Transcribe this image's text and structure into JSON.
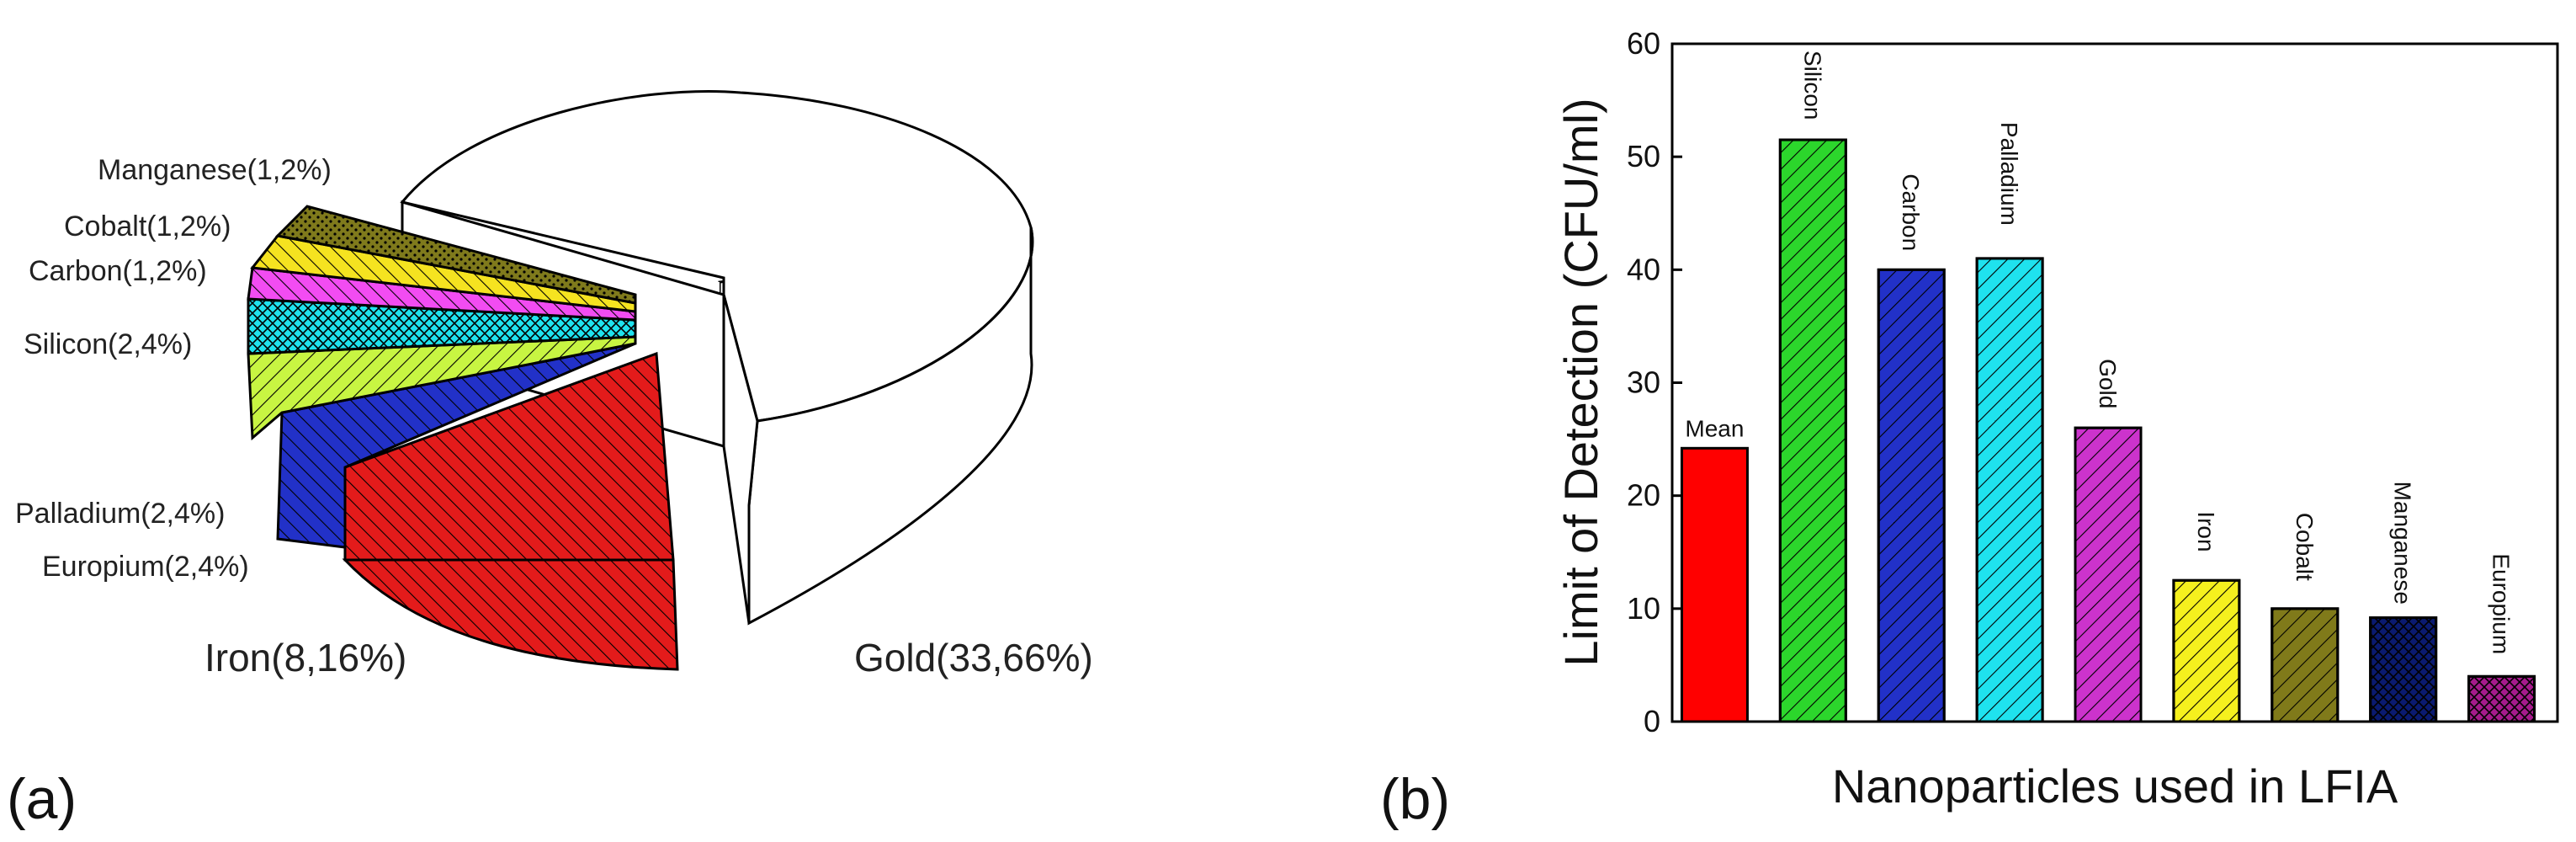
{
  "colors": {
    "gold": "#ffffff",
    "iron": "#e31b1b",
    "europium": "#2231c8",
    "palladium": "#c8f542",
    "silicon": "#1fe2ee",
    "carbon": "#f24cf2",
    "cobalt": "#f5e320",
    "manganese": "#7f7a1c",
    "mean": "#ff0000",
    "bar_silicon": "#2cd62c",
    "bar_carbon": "#2231c8",
    "bar_palladium": "#1fe2ee",
    "bar_gold": "#cc33cc",
    "bar_iron": "#f5f01e",
    "bar_cobalt": "#807a1a",
    "bar_manganese": "#0a1a70",
    "bar_europium": "#a61a8c"
  },
  "chart_data": [
    {
      "type": "pie",
      "panel_label": "(a)",
      "slices": [
        {
          "name": "Gold",
          "count": 33,
          "percent": 66,
          "label": "Gold(33,66%)"
        },
        {
          "name": "Iron",
          "count": 8,
          "percent": 16,
          "label": "Iron(8,16%)"
        },
        {
          "name": "Europium",
          "count": 2,
          "percent": 4,
          "label": "Europium(2,4%)"
        },
        {
          "name": "Palladium",
          "count": 2,
          "percent": 4,
          "label": "Palladium(2,4%)"
        },
        {
          "name": "Silicon",
          "count": 2,
          "percent": 4,
          "label": "Silicon(2,4%)"
        },
        {
          "name": "Carbon",
          "count": 1,
          "percent": 2,
          "label": "Carbon(1,2%)"
        },
        {
          "name": "Cobalt",
          "count": 1,
          "percent": 2,
          "label": "Cobalt(1,2%)"
        },
        {
          "name": "Manganese",
          "count": 1,
          "percent": 2,
          "label": "Manganese(1,2%)"
        }
      ]
    },
    {
      "type": "bar",
      "panel_label": "(b)",
      "categories": [
        "Mean",
        "Silicon",
        "Carbon",
        "Palladium",
        "Gold",
        "Iron",
        "Cobalt",
        "Manganese",
        "Europium"
      ],
      "values": [
        24.2,
        51.5,
        40,
        41,
        26,
        12.5,
        10,
        9.2,
        4
      ],
      "xlabel": "Nanoparticles used in LFIA",
      "ylabel": "Limit of Detection (CFU/ml)",
      "ylim": [
        0,
        60
      ],
      "yticks": [
        "0",
        "10",
        "20",
        "30",
        "40",
        "50",
        "60"
      ]
    }
  ]
}
